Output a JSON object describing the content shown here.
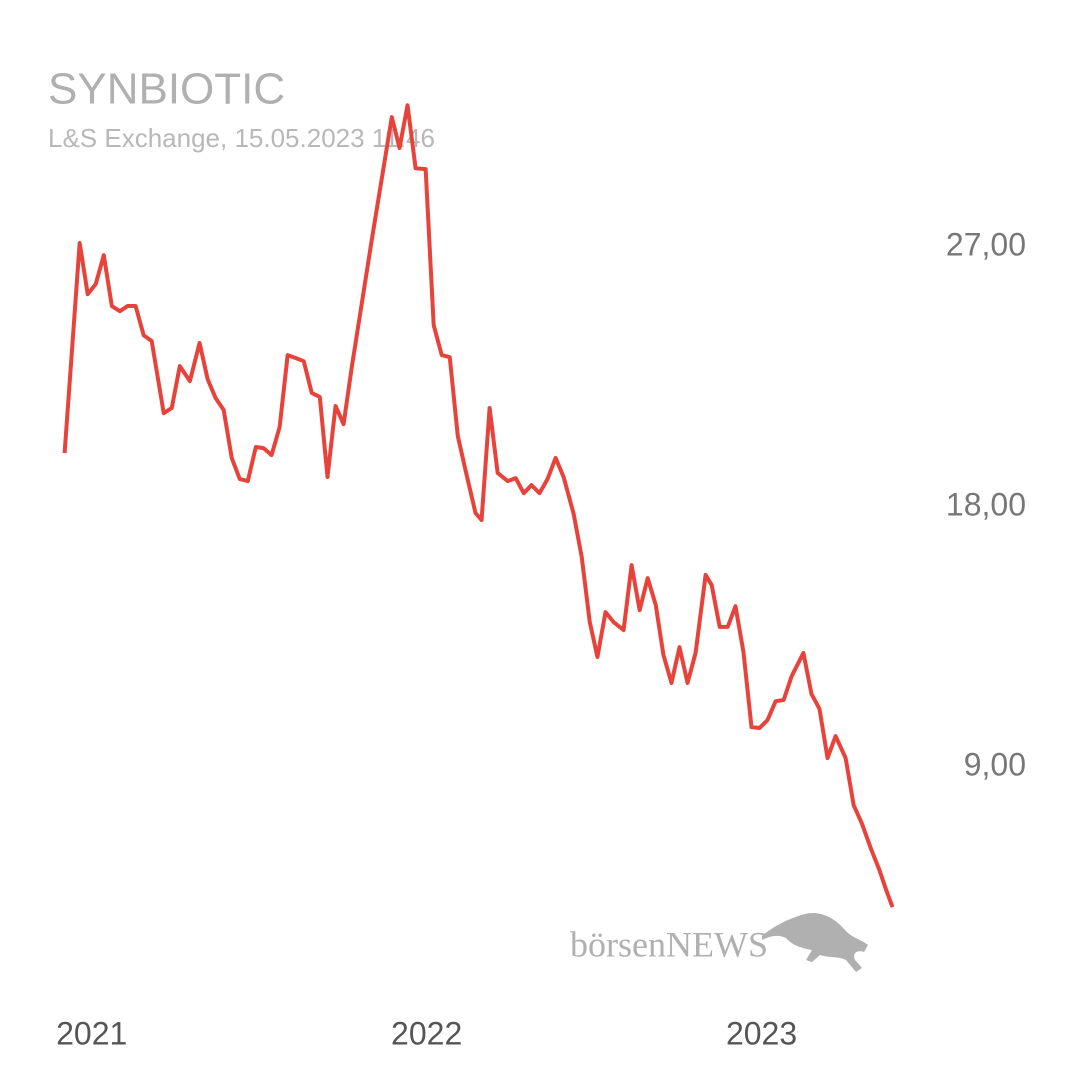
{
  "chart_data": {
    "type": "line",
    "title": "SYNBIOTIC",
    "subtitle": "L&S Exchange, 15.05.2023 11:46",
    "watermark": "börsenNEWS",
    "grid": false,
    "xlim": [
      2020.75,
      2023.7
    ],
    "xticks": [
      2021,
      2022,
      2023
    ],
    "ylim": [
      0,
      35
    ],
    "yticks": [
      {
        "value": 9,
        "label": "9,00"
      },
      {
        "value": 18,
        "label": "18,00"
      },
      {
        "value": 27,
        "label": "27,00"
      }
    ],
    "x": [
      2020.919,
      2020.964,
      2020.988,
      2021.012,
      2021.036,
      2021.06,
      2021.084,
      2021.107,
      2021.131,
      2021.155,
      2021.179,
      2021.215,
      2021.239,
      2021.263,
      2021.293,
      2021.322,
      2021.346,
      2021.37,
      2021.394,
      2021.418,
      2021.442,
      2021.466,
      2021.49,
      2021.513,
      2021.537,
      2021.561,
      2021.585,
      2021.609,
      2021.633,
      2021.657,
      2021.681,
      2021.704,
      2021.728,
      2021.752,
      2021.776,
      2021.836,
      2021.896,
      2021.919,
      2021.943,
      2021.967,
      2021.997,
      2022.021,
      2022.045,
      2022.069,
      2022.093,
      2022.116,
      2022.146,
      2022.164,
      2022.188,
      2022.212,
      2022.242,
      2022.266,
      2022.29,
      2022.313,
      2022.337,
      2022.361,
      2022.385,
      2022.409,
      2022.439,
      2022.463,
      2022.487,
      2022.51,
      2022.534,
      2022.558,
      2022.588,
      2022.612,
      2022.636,
      2022.66,
      2022.684,
      2022.707,
      2022.731,
      2022.755,
      2022.779,
      2022.803,
      2022.833,
      2022.851,
      2022.875,
      2022.899,
      2022.922,
      2022.946,
      2022.97,
      2022.994,
      2023.018,
      2023.042,
      2023.066,
      2023.09,
      2023.125,
      2023.149,
      2023.173,
      2023.197,
      2023.221,
      2023.251,
      2023.275,
      2023.299,
      2023.328,
      2023.352,
      2023.37,
      2023.391
    ],
    "series": [
      {
        "name": "SYNBIOTIC",
        "color": "#e8433a",
        "values": [
          19.87,
          27.14,
          25.37,
          25.72,
          26.72,
          24.96,
          24.78,
          24.96,
          24.96,
          23.95,
          23.75,
          21.25,
          21.43,
          22.88,
          22.36,
          23.68,
          22.43,
          21.77,
          21.36,
          19.7,
          18.97,
          18.9,
          20.08,
          20.04,
          19.8,
          20.77,
          23.26,
          23.16,
          23.05,
          21.95,
          21.81,
          19.04,
          21.5,
          20.87,
          22.81,
          27.24,
          31.5,
          30.43,
          31.91,
          29.73,
          29.7,
          24.3,
          23.26,
          23.19,
          20.46,
          19.28,
          17.79,
          17.55,
          21.43,
          19.18,
          18.9,
          19.0,
          18.48,
          18.76,
          18.48,
          18.97,
          19.7,
          19.04,
          17.76,
          16.27,
          14.02,
          12.81,
          14.36,
          14.02,
          13.74,
          15.99,
          14.43,
          15.54,
          14.61,
          12.88,
          11.91,
          13.15,
          11.91,
          12.95,
          15.65,
          15.3,
          13.85,
          13.85,
          14.57,
          12.98,
          10.38,
          10.35,
          10.63,
          11.28,
          11.32,
          12.15,
          12.95,
          11.53,
          11.01,
          9.31,
          10.07,
          9.31,
          7.68,
          7.06,
          6.13,
          5.43,
          4.81,
          4.15
        ]
      }
    ]
  }
}
